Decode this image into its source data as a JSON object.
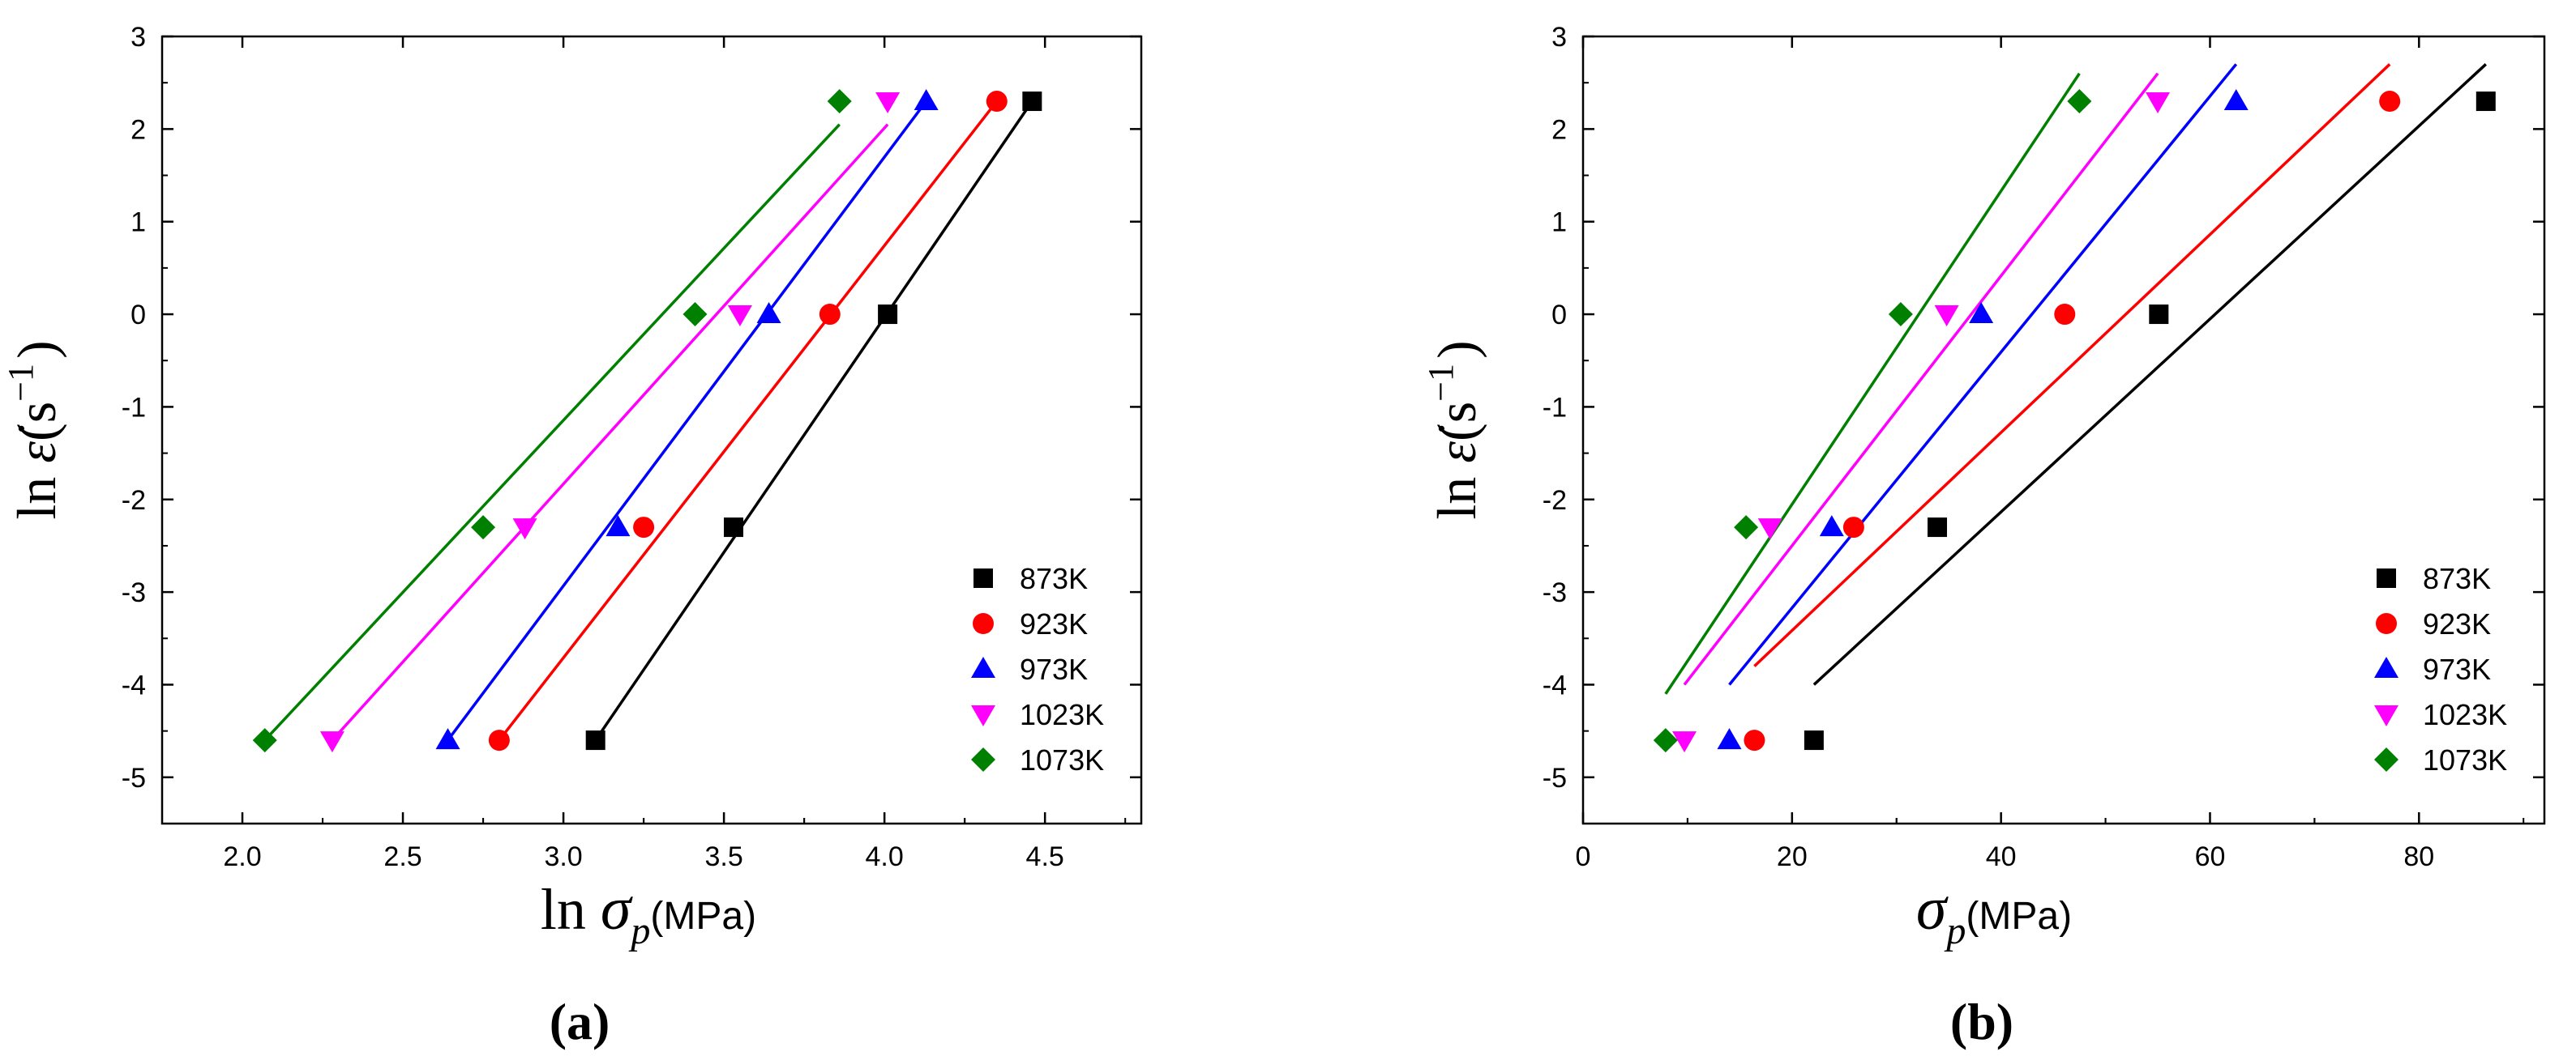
{
  "chart_data": [
    {
      "type": "scatter",
      "panel_label": "(a)",
      "xlabel": {
        "prefix": "ln",
        "symbol": "σ",
        "subscript": "p",
        "unit": "(MPa)"
      },
      "ylabel": {
        "prefix": "ln",
        "symbol": "ε̇",
        "unit": "(s",
        "exponent": "−1",
        "close": ")"
      },
      "xlim": [
        1.75,
        4.8
      ],
      "ylim": [
        -5.5,
        3
      ],
      "xticks": [
        2.0,
        2.5,
        3.0,
        3.5,
        4.0,
        4.5
      ],
      "xtick_labels": [
        "2.0",
        "2.5",
        "3.0",
        "3.5",
        "4.0",
        "4.5"
      ],
      "yticks": [
        -5,
        -4,
        -3,
        -2,
        -1,
        0,
        1,
        2,
        3
      ],
      "ytick_labels": [
        "-5",
        "-4",
        "-3",
        "-2",
        "-1",
        "0",
        "1",
        "2",
        "3"
      ],
      "grid": false,
      "legend_position": "bottom-right",
      "series": [
        {
          "name": "873K",
          "color": "#000000",
          "marker": "square",
          "x": [
            3.1,
            3.53,
            4.01,
            4.46
          ],
          "y": [
            -4.6,
            -2.3,
            0,
            2.3
          ],
          "fit": {
            "x": [
              3.1,
              4.46
            ],
            "y": [
              -4.6,
              2.3
            ]
          }
        },
        {
          "name": "923K",
          "color": "#ff0000",
          "marker": "circle",
          "x": [
            2.8,
            3.25,
            3.83,
            4.35
          ],
          "y": [
            -4.6,
            -2.3,
            0,
            2.3
          ],
          "fit": {
            "x": [
              2.8,
              4.35
            ],
            "y": [
              -4.6,
              2.3
            ]
          }
        },
        {
          "name": "973K",
          "color": "#0000ff",
          "marker": "triangle-up",
          "x": [
            2.64,
            3.17,
            3.64,
            4.13
          ],
          "y": [
            -4.6,
            -2.3,
            0,
            2.3
          ],
          "fit": {
            "x": [
              2.64,
              4.13
            ],
            "y": [
              -4.6,
              2.3
            ]
          }
        },
        {
          "name": "1023K",
          "color": "#ff00ff",
          "marker": "triangle-down",
          "x": [
            2.28,
            2.88,
            3.55,
            4.01
          ],
          "y": [
            -4.6,
            -2.3,
            0,
            2.3
          ],
          "fit": {
            "x": [
              2.28,
              4.01
            ],
            "y": [
              -4.6,
              2.05
            ]
          }
        },
        {
          "name": "1073K",
          "color": "#008000",
          "marker": "diamond",
          "x": [
            2.07,
            2.75,
            3.41,
            3.86
          ],
          "y": [
            -4.6,
            -2.3,
            0,
            2.3
          ],
          "fit": {
            "x": [
              2.07,
              3.86
            ],
            "y": [
              -4.6,
              2.05
            ]
          }
        }
      ]
    },
    {
      "type": "scatter",
      "panel_label": "(b)",
      "xlabel": {
        "prefix": "",
        "symbol": "σ",
        "subscript": "p",
        "unit": "(MPa)"
      },
      "ylabel": {
        "prefix": "ln",
        "symbol": "ε̇",
        "unit": "(s",
        "exponent": "−1",
        "close": ")"
      },
      "xlim": [
        0,
        92
      ],
      "ylim": [
        -5.5,
        3
      ],
      "xticks": [
        0,
        20,
        40,
        60,
        80
      ],
      "xtick_labels": [
        "0",
        "20",
        "40",
        "60",
        "80"
      ],
      "yticks": [
        -5,
        -4,
        -3,
        -2,
        -1,
        0,
        1,
        2,
        3
      ],
      "ytick_labels": [
        "-5",
        "-4",
        "-3",
        "-2",
        "-1",
        "0",
        "1",
        "2",
        "3"
      ],
      "grid": false,
      "legend_position": "bottom-right",
      "series": [
        {
          "name": "873K",
          "color": "#000000",
          "marker": "square",
          "x": [
            22.1,
            33.9,
            55.1,
            86.4
          ],
          "y": [
            -4.6,
            -2.3,
            0,
            2.3
          ],
          "fit": {
            "x": [
              22.1,
              86.4
            ],
            "y": [
              -4.0,
              2.7
            ]
          }
        },
        {
          "name": "923K",
          "color": "#ff0000",
          "marker": "circle",
          "x": [
            16.4,
            25.9,
            46.1,
            77.2
          ],
          "y": [
            -4.6,
            -2.3,
            0,
            2.3
          ],
          "fit": {
            "x": [
              16.4,
              77.2
            ],
            "y": [
              -3.8,
              2.7
            ]
          }
        },
        {
          "name": "973K",
          "color": "#0000ff",
          "marker": "triangle-up",
          "x": [
            14.0,
            23.8,
            38.1,
            62.5
          ],
          "y": [
            -4.6,
            -2.3,
            0,
            2.3
          ],
          "fit": {
            "x": [
              14.0,
              62.5
            ],
            "y": [
              -4.0,
              2.7
            ]
          }
        },
        {
          "name": "1023K",
          "color": "#ff00ff",
          "marker": "triangle-down",
          "x": [
            9.7,
            17.9,
            34.8,
            55.0
          ],
          "y": [
            -4.6,
            -2.3,
            0,
            2.3
          ],
          "fit": {
            "x": [
              9.7,
              55.0
            ],
            "y": [
              -4.0,
              2.6
            ]
          }
        },
        {
          "name": "1073K",
          "color": "#008000",
          "marker": "diamond",
          "x": [
            7.9,
            15.6,
            30.4,
            47.5
          ],
          "y": [
            -4.6,
            -2.3,
            0,
            2.3
          ],
          "fit": {
            "x": [
              7.9,
              47.5
            ],
            "y": [
              -4.1,
              2.6
            ]
          }
        }
      ]
    }
  ]
}
